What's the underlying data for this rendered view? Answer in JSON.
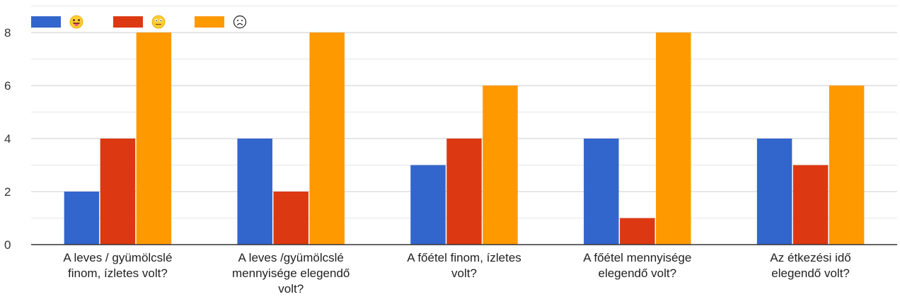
{
  "chart_data": {
    "type": "bar",
    "categories": [
      [
        "A leves / gyümölcslé",
        "finom, ízletes volt?"
      ],
      [
        "A leves /gyümölcslé",
        "mennyisége elegendő",
        "volt?"
      ],
      [
        "A főétel finom, ízletes",
        "volt?"
      ],
      [
        "A főétel mennyisége",
        "elegendő volt?"
      ],
      [
        "Az étkezési idő",
        "elegendő volt?"
      ]
    ],
    "series": [
      {
        "legend_icon": "grinning-face-tongue-icon",
        "color": "#3366cc",
        "values": [
          2,
          4,
          3,
          4,
          4
        ]
      },
      {
        "legend_icon": "neutral-face-icon",
        "color": "#dc3912",
        "values": [
          4,
          2,
          4,
          1,
          3
        ]
      },
      {
        "legend_icon": "frowning-face-outline-icon",
        "color": "#ff9900",
        "values": [
          8,
          8,
          6,
          8,
          6
        ]
      }
    ],
    "y_ticks": [
      "0",
      "2",
      "4",
      "6",
      "8"
    ],
    "ylim": [
      0,
      9
    ],
    "grid": true,
    "legend_position": "top-left"
  }
}
